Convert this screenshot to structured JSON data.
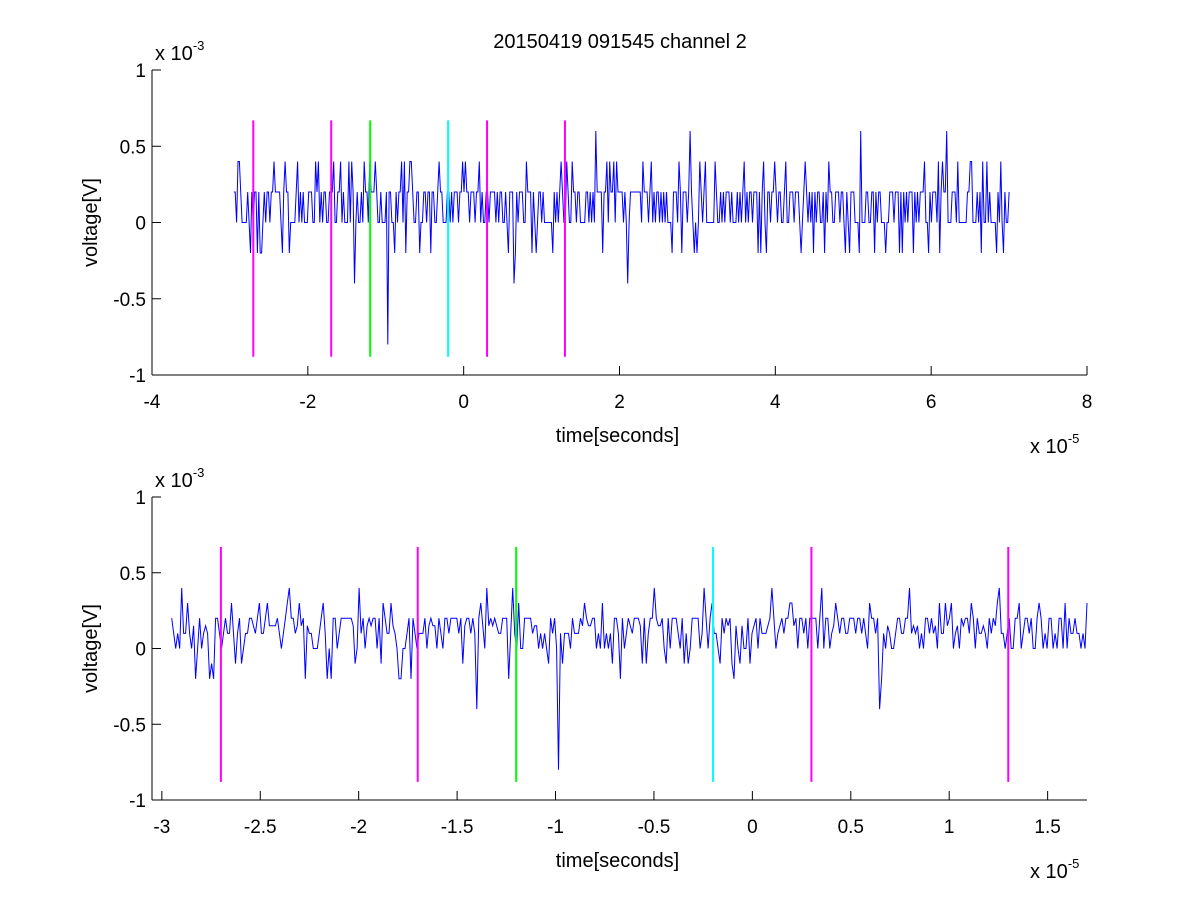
{
  "figure": {
    "title": "20150419 091545 channel 2"
  },
  "chart_data": [
    {
      "type": "line",
      "title": "20150419 091545 channel 2",
      "xlabel": "time[seconds]",
      "ylabel": "voltage[V]",
      "x_multiplier": "x 10",
      "x_exponent": "-5",
      "y_multiplier": "x 10",
      "y_exponent": "-3",
      "xlim": [
        -4,
        8
      ],
      "ylim": [
        -1,
        1
      ],
      "x_ticks": [
        -4,
        -2,
        0,
        2,
        4,
        6,
        8
      ],
      "x_tick_labels": [
        "-4",
        "-2",
        "0",
        "2",
        "4",
        "6",
        "8"
      ],
      "y_ticks": [
        -1,
        -0.5,
        0,
        0.5,
        1
      ],
      "y_tick_labels": [
        "-1",
        "-0.5",
        "0",
        "0.5",
        "1"
      ],
      "grid": false,
      "signal": {
        "color": "#0000ff",
        "x_start": -2.95,
        "x_end": 7.0,
        "samples": 560,
        "levels": [
          -0.2,
          0,
          0.2,
          0.4
        ],
        "spikes": [
          {
            "x": -2.9,
            "y": 0.4
          },
          {
            "x": -2.3,
            "y": 0.4
          },
          {
            "x": -1.9,
            "y": 0.4
          },
          {
            "x": -1.4,
            "y": -0.4
          },
          {
            "x": -1.2,
            "y": 0.4
          },
          {
            "x": -0.98,
            "y": -0.8
          },
          {
            "x": -0.8,
            "y": 0.4
          },
          {
            "x": 0.2,
            "y": 0.4
          },
          {
            "x": 0.65,
            "y": -0.4
          },
          {
            "x": 1.7,
            "y": 0.6
          },
          {
            "x": 2.1,
            "y": -0.4
          },
          {
            "x": 2.9,
            "y": 0.6
          },
          {
            "x": 3.6,
            "y": 0.4
          },
          {
            "x": 5.1,
            "y": 0.6
          },
          {
            "x": 6.1,
            "y": 0.4
          },
          {
            "x": 6.2,
            "y": 0.6
          },
          {
            "x": 6.5,
            "y": 0.4
          },
          {
            "x": 6.65,
            "y": -0.2
          },
          {
            "x": 6.9,
            "y": 0.4
          }
        ]
      },
      "markers": [
        {
          "x": -2.7,
          "y_min": -0.88,
          "y_max": 0.67,
          "color": "#ff00ff"
        },
        {
          "x": -1.7,
          "y_min": -0.88,
          "y_max": 0.67,
          "color": "#ff00ff"
        },
        {
          "x": -1.2,
          "y_min": -0.88,
          "y_max": 0.67,
          "color": "#00ff00"
        },
        {
          "x": -0.2,
          "y_min": -0.88,
          "y_max": 0.67,
          "color": "#00ffff"
        },
        {
          "x": 0.3,
          "y_min": -0.88,
          "y_max": 0.67,
          "color": "#ff00ff"
        },
        {
          "x": 1.3,
          "y_min": -0.88,
          "y_max": 0.67,
          "color": "#ff00ff"
        }
      ]
    },
    {
      "type": "line",
      "title": "",
      "xlabel": "time[seconds]",
      "ylabel": "voltage[V]",
      "x_multiplier": "x 10",
      "x_exponent": "-5",
      "y_multiplier": "x 10",
      "y_exponent": "-3",
      "xlim": [
        -3.05,
        1.7
      ],
      "ylim": [
        -1,
        1
      ],
      "x_ticks": [
        -3,
        -2.5,
        -2,
        -1.5,
        -1,
        -0.5,
        0,
        0.5,
        1,
        1.5
      ],
      "x_tick_labels": [
        "-3",
        "-2.5",
        "-2",
        "-1.5",
        "-1",
        "-0.5",
        "0",
        "0.5",
        "1",
        "1.5"
      ],
      "y_ticks": [
        -1,
        -0.5,
        0,
        0.5,
        1
      ],
      "y_tick_labels": [
        "-1",
        "-0.5",
        "0",
        "0.5",
        "1"
      ],
      "grid": false,
      "signal": {
        "color": "#0000ff",
        "x_start": -2.95,
        "x_end": 1.7,
        "samples": 460,
        "levels": [
          -0.2,
          -0.1,
          0,
          0.1,
          0.2,
          0.3,
          0.4
        ],
        "spikes": [
          {
            "x": -2.9,
            "y": 0.4
          },
          {
            "x": -2.35,
            "y": 0.4
          },
          {
            "x": -2.0,
            "y": 0.4
          },
          {
            "x": -1.4,
            "y": -0.4
          },
          {
            "x": -1.35,
            "y": 0.4
          },
          {
            "x": -1.22,
            "y": 0.4
          },
          {
            "x": -0.98,
            "y": -0.8
          },
          {
            "x": -0.5,
            "y": 0.4
          },
          {
            "x": -0.25,
            "y": 0.4
          },
          {
            "x": 0.1,
            "y": 0.4
          },
          {
            "x": 0.35,
            "y": 0.4
          },
          {
            "x": 0.65,
            "y": -0.4
          },
          {
            "x": 0.8,
            "y": 0.4
          },
          {
            "x": 1.25,
            "y": 0.4
          },
          {
            "x": 1.7,
            "y": 0.3
          }
        ]
      },
      "markers": [
        {
          "x": -2.7,
          "y_min": -0.88,
          "y_max": 0.67,
          "color": "#ff00ff"
        },
        {
          "x": -1.7,
          "y_min": -0.88,
          "y_max": 0.67,
          "color": "#ff00ff"
        },
        {
          "x": -1.2,
          "y_min": -0.88,
          "y_max": 0.67,
          "color": "#00ff00"
        },
        {
          "x": -0.2,
          "y_min": -0.88,
          "y_max": 0.67,
          "color": "#00ffff"
        },
        {
          "x": 0.3,
          "y_min": -0.88,
          "y_max": 0.67,
          "color": "#ff00ff"
        },
        {
          "x": 1.3,
          "y_min": -0.88,
          "y_max": 0.67,
          "color": "#ff00ff"
        }
      ]
    }
  ]
}
